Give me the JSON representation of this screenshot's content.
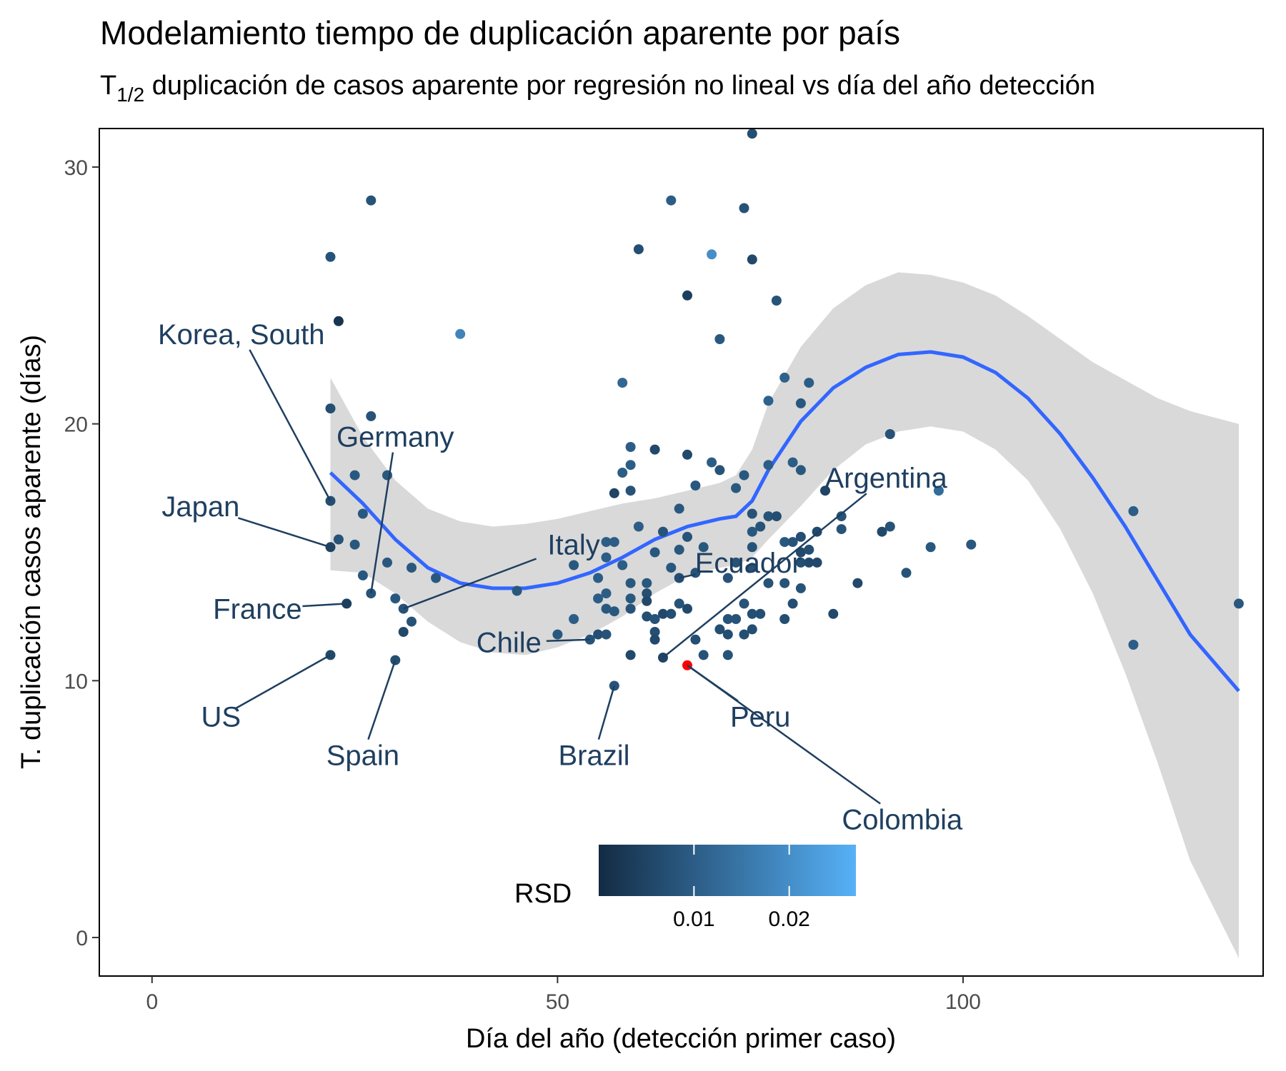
{
  "chart_data": {
    "type": "scatter",
    "title": "Modelamiento tiempo de duplicación aparente por país",
    "subtitle": {
      "prefix": "T",
      "subscript": "1/2",
      "text": " duplicación de casos aparente por regresión no lineal vs día del año detección"
    },
    "xlabel": "Día del año (detección primer caso)",
    "ylabel": "T. duplicación casos aparente (días)",
    "xlim": [
      -6.5,
      137
    ],
    "ylim": [
      -1.5,
      31.5
    ],
    "x_ticks": [
      0,
      50,
      100
    ],
    "y_ticks": [
      0,
      10,
      20,
      30
    ],
    "grid": false,
    "legend": {
      "title": "RSD",
      "placement": "bottom-center",
      "type": "colorbar",
      "range": [
        0.0,
        0.027
      ],
      "ticks": [
        0.01,
        0.02
      ],
      "colors": [
        "#132b43",
        "#56b1f7"
      ]
    },
    "highlight_color": "#ff0000",
    "smooth_line_color": "#3366ff",
    "ribbon_color": "#d9d9d9",
    "smooth": [
      {
        "x": 22,
        "y": 18.1,
        "lo": 14.3,
        "hi": 21.8
      },
      {
        "x": 26,
        "y": 16.9,
        "lo": 14.2,
        "hi": 19.5
      },
      {
        "x": 30,
        "y": 15.5,
        "lo": 13.4,
        "hi": 17.8
      },
      {
        "x": 34,
        "y": 14.4,
        "lo": 12.3,
        "hi": 16.7
      },
      {
        "x": 38,
        "y": 13.8,
        "lo": 11.5,
        "hi": 16.2
      },
      {
        "x": 42,
        "y": 13.6,
        "lo": 11.1,
        "hi": 16.0
      },
      {
        "x": 46,
        "y": 13.6,
        "lo": 11.0,
        "hi": 16.1
      },
      {
        "x": 50,
        "y": 13.8,
        "lo": 11.3,
        "hi": 16.3
      },
      {
        "x": 54,
        "y": 14.2,
        "lo": 11.8,
        "hi": 16.6
      },
      {
        "x": 58,
        "y": 14.8,
        "lo": 12.5,
        "hi": 16.9
      },
      {
        "x": 62,
        "y": 15.5,
        "lo": 13.4,
        "hi": 17.1
      },
      {
        "x": 66,
        "y": 16.0,
        "lo": 14.1,
        "hi": 17.4
      },
      {
        "x": 70,
        "y": 16.3,
        "lo": 14.4,
        "hi": 17.7
      },
      {
        "x": 72,
        "y": 16.4,
        "lo": 14.5,
        "hi": 18.0
      },
      {
        "x": 74,
        "y": 17.0,
        "lo": 14.8,
        "hi": 19.0
      },
      {
        "x": 76,
        "y": 18.2,
        "lo": 15.5,
        "hi": 20.8
      },
      {
        "x": 80,
        "y": 20.1,
        "lo": 16.8,
        "hi": 23.0
      },
      {
        "x": 84,
        "y": 21.4,
        "lo": 18.2,
        "hi": 24.5
      },
      {
        "x": 88,
        "y": 22.2,
        "lo": 19.2,
        "hi": 25.4
      },
      {
        "x": 92,
        "y": 22.7,
        "lo": 19.7,
        "hi": 25.9
      },
      {
        "x": 96,
        "y": 22.8,
        "lo": 19.9,
        "hi": 25.8
      },
      {
        "x": 100,
        "y": 22.6,
        "lo": 19.7,
        "hi": 25.5
      },
      {
        "x": 104,
        "y": 22.0,
        "lo": 19.0,
        "hi": 25.0
      },
      {
        "x": 108,
        "y": 21.0,
        "lo": 17.8,
        "hi": 24.2
      },
      {
        "x": 112,
        "y": 19.6,
        "lo": 15.9,
        "hi": 23.3
      },
      {
        "x": 116,
        "y": 17.9,
        "lo": 13.4,
        "hi": 22.4
      },
      {
        "x": 120,
        "y": 16.0,
        "lo": 10.3,
        "hi": 21.7
      },
      {
        "x": 124,
        "y": 13.9,
        "lo": 6.8,
        "hi": 21.0
      },
      {
        "x": 128,
        "y": 11.8,
        "lo": 3.0,
        "hi": 20.5
      },
      {
        "x": 134,
        "y": 9.6,
        "lo": -0.8,
        "hi": 20.0
      }
    ],
    "points": [
      {
        "x": 22,
        "y": 26.5,
        "rsd": 0.008
      },
      {
        "x": 23,
        "y": 24.0,
        "rsd": 0.002
      },
      {
        "x": 22,
        "y": 20.6,
        "rsd": 0.007
      },
      {
        "x": 22,
        "y": 17.0,
        "rsd": 0.007
      },
      {
        "x": 22,
        "y": 15.2,
        "rsd": 0.005
      },
      {
        "x": 23,
        "y": 15.5,
        "rsd": 0.008
      },
      {
        "x": 24,
        "y": 13.0,
        "rsd": 0.004
      },
      {
        "x": 22,
        "y": 11.0,
        "rsd": 0.006
      },
      {
        "x": 27,
        "y": 28.7,
        "rsd": 0.008
      },
      {
        "x": 27,
        "y": 20.3,
        "rsd": 0.008
      },
      {
        "x": 25,
        "y": 18.0,
        "rsd": 0.009
      },
      {
        "x": 29,
        "y": 18.0,
        "rsd": 0.009
      },
      {
        "x": 26,
        "y": 16.5,
        "rsd": 0.009
      },
      {
        "x": 25,
        "y": 15.3,
        "rsd": 0.009
      },
      {
        "x": 29,
        "y": 14.6,
        "rsd": 0.009
      },
      {
        "x": 26,
        "y": 14.1,
        "rsd": 0.009
      },
      {
        "x": 27,
        "y": 13.4,
        "rsd": 0.008
      },
      {
        "x": 30,
        "y": 13.2,
        "rsd": 0.009
      },
      {
        "x": 31,
        "y": 12.8,
        "rsd": 0.008
      },
      {
        "x": 32,
        "y": 12.3,
        "rsd": 0.008
      },
      {
        "x": 31,
        "y": 11.9,
        "rsd": 0.006
      },
      {
        "x": 30,
        "y": 10.8,
        "rsd": 0.007
      },
      {
        "x": 32,
        "y": 14.4,
        "rsd": 0.009
      },
      {
        "x": 35,
        "y": 14.0,
        "rsd": 0.009
      },
      {
        "x": 38,
        "y": 23.5,
        "rsd": 0.018
      },
      {
        "x": 45,
        "y": 13.5,
        "rsd": 0.009
      },
      {
        "x": 50,
        "y": 11.8,
        "rsd": 0.009
      },
      {
        "x": 52,
        "y": 14.5,
        "rsd": 0.009
      },
      {
        "x": 52,
        "y": 12.4,
        "rsd": 0.01
      },
      {
        "x": 54,
        "y": 11.6,
        "rsd": 0.008
      },
      {
        "x": 55,
        "y": 11.8,
        "rsd": 0.007
      },
      {
        "x": 56,
        "y": 11.8,
        "rsd": 0.008
      },
      {
        "x": 56,
        "y": 15.4,
        "rsd": 0.01
      },
      {
        "x": 57,
        "y": 15.4,
        "rsd": 0.01
      },
      {
        "x": 56,
        "y": 14.8,
        "rsd": 0.01
      },
      {
        "x": 55,
        "y": 14.0,
        "rsd": 0.01
      },
      {
        "x": 56,
        "y": 13.4,
        "rsd": 0.01
      },
      {
        "x": 55,
        "y": 13.2,
        "rsd": 0.01
      },
      {
        "x": 56,
        "y": 12.8,
        "rsd": 0.009
      },
      {
        "x": 57,
        "y": 12.7,
        "rsd": 0.009
      },
      {
        "x": 57,
        "y": 9.8,
        "rsd": 0.008
      },
      {
        "x": 57,
        "y": 17.3,
        "rsd": 0.005
      },
      {
        "x": 58,
        "y": 18.1,
        "rsd": 0.01
      },
      {
        "x": 58,
        "y": 21.6,
        "rsd": 0.012
      },
      {
        "x": 58,
        "y": 14.5,
        "rsd": 0.01
      },
      {
        "x": 59,
        "y": 17.4,
        "rsd": 0.008
      },
      {
        "x": 59,
        "y": 18.4,
        "rsd": 0.01
      },
      {
        "x": 59,
        "y": 19.1,
        "rsd": 0.01
      },
      {
        "x": 59,
        "y": 13.8,
        "rsd": 0.009
      },
      {
        "x": 59,
        "y": 13.2,
        "rsd": 0.009
      },
      {
        "x": 59,
        "y": 12.8,
        "rsd": 0.008
      },
      {
        "x": 59,
        "y": 11.0,
        "rsd": 0.006
      },
      {
        "x": 60,
        "y": 26.8,
        "rsd": 0.007
      },
      {
        "x": 60,
        "y": 16.0,
        "rsd": 0.01
      },
      {
        "x": 61,
        "y": 13.8,
        "rsd": 0.009
      },
      {
        "x": 61,
        "y": 13.4,
        "rsd": 0.007
      },
      {
        "x": 61,
        "y": 13.1,
        "rsd": 0.006
      },
      {
        "x": 61,
        "y": 12.5,
        "rsd": 0.007
      },
      {
        "x": 62,
        "y": 19.0,
        "rsd": 0.006
      },
      {
        "x": 62,
        "y": 15.0,
        "rsd": 0.009
      },
      {
        "x": 62,
        "y": 12.4,
        "rsd": 0.008
      },
      {
        "x": 62,
        "y": 11.9,
        "rsd": 0.007
      },
      {
        "x": 62,
        "y": 11.6,
        "rsd": 0.006
      },
      {
        "x": 63,
        "y": 10.9,
        "rsd": 0.005
      },
      {
        "x": 63,
        "y": 15.8,
        "rsd": 0.008
      },
      {
        "x": 63,
        "y": 12.6,
        "rsd": 0.006
      },
      {
        "x": 64,
        "y": 28.7,
        "rsd": 0.01
      },
      {
        "x": 64,
        "y": 14.4,
        "rsd": 0.009
      },
      {
        "x": 64,
        "y": 12.6,
        "rsd": 0.007
      },
      {
        "x": 65,
        "y": 16.7,
        "rsd": 0.009
      },
      {
        "x": 65,
        "y": 15.1,
        "rsd": 0.009
      },
      {
        "x": 65,
        "y": 14.0,
        "rsd": 0.007
      },
      {
        "x": 65,
        "y": 13.0,
        "rsd": 0.008
      },
      {
        "x": 66,
        "y": 25.0,
        "rsd": 0.004
      },
      {
        "x": 66,
        "y": 18.8,
        "rsd": 0.006
      },
      {
        "x": 66,
        "y": 15.6,
        "rsd": 0.008
      },
      {
        "x": 66,
        "y": 12.8,
        "rsd": 0.006
      },
      {
        "x": 66,
        "y": 10.6,
        "rsd": 0.001
      },
      {
        "x": 67,
        "y": 17.6,
        "rsd": 0.009
      },
      {
        "x": 67,
        "y": 14.2,
        "rsd": 0.008
      },
      {
        "x": 67,
        "y": 11.6,
        "rsd": 0.007
      },
      {
        "x": 68,
        "y": 15.2,
        "rsd": 0.009
      },
      {
        "x": 68,
        "y": 11.0,
        "rsd": 0.008
      },
      {
        "x": 69,
        "y": 26.6,
        "rsd": 0.02
      },
      {
        "x": 69,
        "y": 18.5,
        "rsd": 0.01
      },
      {
        "x": 70,
        "y": 23.3,
        "rsd": 0.009
      },
      {
        "x": 70,
        "y": 18.2,
        "rsd": 0.008
      },
      {
        "x": 70,
        "y": 12.0,
        "rsd": 0.007
      },
      {
        "x": 71,
        "y": 14.0,
        "rsd": 0.008
      },
      {
        "x": 71,
        "y": 12.4,
        "rsd": 0.008
      },
      {
        "x": 71,
        "y": 11.8,
        "rsd": 0.007
      },
      {
        "x": 71,
        "y": 11.0,
        "rsd": 0.008
      },
      {
        "x": 72,
        "y": 17.5,
        "rsd": 0.009
      },
      {
        "x": 72,
        "y": 14.6,
        "rsd": 0.008
      },
      {
        "x": 72,
        "y": 12.4,
        "rsd": 0.008
      },
      {
        "x": 73,
        "y": 28.4,
        "rsd": 0.008
      },
      {
        "x": 73,
        "y": 18.0,
        "rsd": 0.009
      },
      {
        "x": 73,
        "y": 13.0,
        "rsd": 0.008
      },
      {
        "x": 73,
        "y": 11.8,
        "rsd": 0.007
      },
      {
        "x": 74,
        "y": 31.3,
        "rsd": 0.007
      },
      {
        "x": 74,
        "y": 26.4,
        "rsd": 0.006
      },
      {
        "x": 74,
        "y": 16.5,
        "rsd": 0.008
      },
      {
        "x": 74,
        "y": 15.8,
        "rsd": 0.009
      },
      {
        "x": 74,
        "y": 15.2,
        "rsd": 0.008
      },
      {
        "x": 74,
        "y": 14.4,
        "rsd": 0.008
      },
      {
        "x": 74,
        "y": 12.6,
        "rsd": 0.007
      },
      {
        "x": 74,
        "y": 12.0,
        "rsd": 0.007
      },
      {
        "x": 75,
        "y": 16.0,
        "rsd": 0.008
      },
      {
        "x": 75,
        "y": 12.6,
        "rsd": 0.007
      },
      {
        "x": 76,
        "y": 16.4,
        "rsd": 0.008
      },
      {
        "x": 76,
        "y": 13.8,
        "rsd": 0.008
      },
      {
        "x": 76,
        "y": 20.9,
        "rsd": 0.011
      },
      {
        "x": 76,
        "y": 18.4,
        "rsd": 0.01
      },
      {
        "x": 77,
        "y": 24.8,
        "rsd": 0.008
      },
      {
        "x": 77,
        "y": 16.4,
        "rsd": 0.007
      },
      {
        "x": 78,
        "y": 21.8,
        "rsd": 0.011
      },
      {
        "x": 78,
        "y": 15.4,
        "rsd": 0.009
      },
      {
        "x": 78,
        "y": 13.8,
        "rsd": 0.008
      },
      {
        "x": 78,
        "y": 12.4,
        "rsd": 0.007
      },
      {
        "x": 79,
        "y": 18.5,
        "rsd": 0.01
      },
      {
        "x": 79,
        "y": 15.4,
        "rsd": 0.008
      },
      {
        "x": 79,
        "y": 13.0,
        "rsd": 0.007
      },
      {
        "x": 80,
        "y": 20.8,
        "rsd": 0.009
      },
      {
        "x": 80,
        "y": 18.2,
        "rsd": 0.009
      },
      {
        "x": 80,
        "y": 15.6,
        "rsd": 0.007
      },
      {
        "x": 80,
        "y": 15.0,
        "rsd": 0.006
      },
      {
        "x": 80,
        "y": 14.6,
        "rsd": 0.007
      },
      {
        "x": 80,
        "y": 13.6,
        "rsd": 0.008
      },
      {
        "x": 81,
        "y": 21.6,
        "rsd": 0.01
      },
      {
        "x": 81,
        "y": 15.1,
        "rsd": 0.007
      },
      {
        "x": 81,
        "y": 14.6,
        "rsd": 0.006
      },
      {
        "x": 82,
        "y": 15.8,
        "rsd": 0.006
      },
      {
        "x": 82,
        "y": 14.6,
        "rsd": 0.006
      },
      {
        "x": 83,
        "y": 17.4,
        "rsd": 0.005
      },
      {
        "x": 84,
        "y": 12.6,
        "rsd": 0.006
      },
      {
        "x": 85,
        "y": 16.4,
        "rsd": 0.008
      },
      {
        "x": 85,
        "y": 15.9,
        "rsd": 0.008
      },
      {
        "x": 87,
        "y": 13.8,
        "rsd": 0.006
      },
      {
        "x": 90,
        "y": 15.8,
        "rsd": 0.006
      },
      {
        "x": 91,
        "y": 19.6,
        "rsd": 0.008
      },
      {
        "x": 91,
        "y": 16.0,
        "rsd": 0.008
      },
      {
        "x": 93,
        "y": 14.2,
        "rsd": 0.008
      },
      {
        "x": 96,
        "y": 15.2,
        "rsd": 0.009
      },
      {
        "x": 97,
        "y": 17.4,
        "rsd": 0.013
      },
      {
        "x": 101,
        "y": 15.3,
        "rsd": 0.009
      },
      {
        "x": 121,
        "y": 16.6,
        "rsd": 0.01
      },
      {
        "x": 121,
        "y": 11.4,
        "rsd": 0.01
      },
      {
        "x": 134,
        "y": 13.0,
        "rsd": 0.009
      }
    ],
    "annotations": [
      {
        "label": "Korea, South",
        "point": [
          22,
          17.0
        ],
        "label_pos": [
          11,
          23.5
        ],
        "anchor": "middle"
      },
      {
        "label": "Germany",
        "point": [
          27,
          13.4
        ],
        "label_pos": [
          30,
          19.5
        ],
        "anchor": "middle"
      },
      {
        "label": "Japan",
        "point": [
          22,
          15.2
        ],
        "label_pos": [
          6,
          16.8
        ],
        "anchor": "middle"
      },
      {
        "label": "Italy",
        "point": [
          31,
          12.8
        ],
        "label_pos": [
          52,
          15.3
        ],
        "anchor": "middle"
      },
      {
        "label": "France",
        "point": [
          24,
          13.0
        ],
        "label_pos": [
          13,
          12.8
        ],
        "anchor": "middle"
      },
      {
        "label": "Argentina",
        "point": [
          63,
          10.9
        ],
        "label_pos": [
          90.5,
          17.9
        ],
        "anchor": "middle"
      },
      {
        "label": "Ecuador",
        "point": [
          65,
          14.0
        ],
        "label_pos": [
          73.5,
          14.6
        ],
        "anchor": "middle"
      },
      {
        "label": "Chile",
        "point": [
          54,
          11.6
        ],
        "label_pos": [
          44,
          11.5
        ],
        "anchor": "middle"
      },
      {
        "label": "US",
        "point": [
          22,
          11.0
        ],
        "label_pos": [
          8.5,
          8.6
        ],
        "anchor": "middle"
      },
      {
        "label": "Spain",
        "point": [
          30,
          10.8
        ],
        "label_pos": [
          26,
          7.1
        ],
        "anchor": "middle"
      },
      {
        "label": "Brazil",
        "point": [
          57,
          9.8
        ],
        "label_pos": [
          54.5,
          7.1
        ],
        "anchor": "middle"
      },
      {
        "label": "Peru",
        "point": [
          66,
          10.6
        ],
        "label_pos": [
          75,
          8.6
        ],
        "anchor": "middle"
      },
      {
        "label": "Colombia",
        "point": [
          66,
          10.6
        ],
        "label_pos": [
          92.5,
          4.6
        ],
        "anchor": "middle"
      }
    ]
  }
}
